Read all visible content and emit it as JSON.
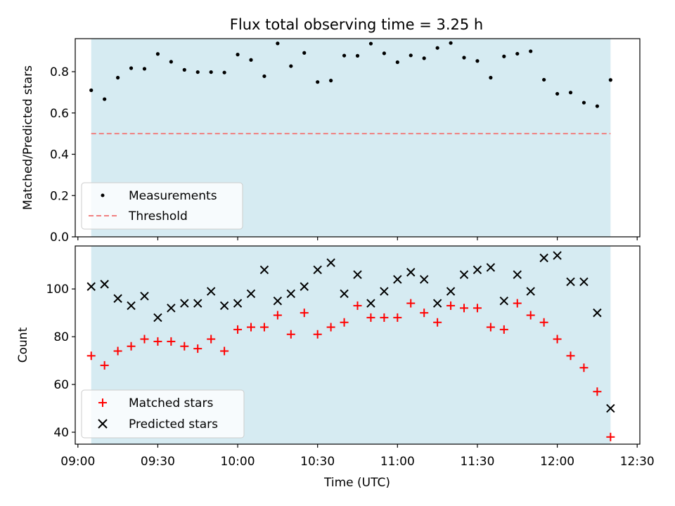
{
  "title": "Flux total observing time = 3.25 h",
  "colors": {
    "shade": "#add8e6",
    "measurements": "#000000",
    "threshold": "#f08080",
    "matched": "#ff0000",
    "predicted": "#000000"
  },
  "chart_data": [
    {
      "type": "scatter",
      "panel": "top",
      "title": "Flux total observing time = 3.25 h",
      "xlabel": "",
      "ylabel": "Matched/Predicted stars",
      "x_axis": "time (UTC, shared with bottom panel)",
      "ylim": [
        0,
        0.96
      ],
      "yticks": [
        "0.0",
        "0.2",
        "0.4",
        "0.6",
        "0.8"
      ],
      "ytick_values": [
        0,
        0.2,
        0.4,
        0.6,
        0.8
      ],
      "observing_window": [
        "09:05",
        "12:20"
      ],
      "legend_position": "lower-left",
      "series": [
        {
          "name": "Measurements",
          "marker": "dot",
          "x": [
            "09:05",
            "09:10",
            "09:15",
            "09:20",
            "09:25",
            "09:30",
            "09:35",
            "09:40",
            "09:45",
            "09:50",
            "09:55",
            "10:00",
            "10:05",
            "10:10",
            "10:15",
            "10:20",
            "10:25",
            "10:30",
            "10:35",
            "10:40",
            "10:45",
            "10:50",
            "10:55",
            "11:00",
            "11:05",
            "11:10",
            "11:15",
            "11:20",
            "11:25",
            "11:30",
            "11:35",
            "11:40",
            "11:45",
            "11:50",
            "11:55",
            "12:00",
            "12:05",
            "12:10",
            "12:15",
            "12:20"
          ],
          "y": [
            0.71,
            0.667,
            0.771,
            0.817,
            0.814,
            0.886,
            0.848,
            0.809,
            0.798,
            0.798,
            0.796,
            0.883,
            0.857,
            0.778,
            0.937,
            0.827,
            0.891,
            0.75,
            0.757,
            0.878,
            0.877,
            0.936,
            0.889,
            0.846,
            0.879,
            0.865,
            0.915,
            0.939,
            0.868,
            0.852,
            0.771,
            0.874,
            0.887,
            0.899,
            0.761,
            0.693,
            0.699,
            0.65,
            0.633,
            0.76
          ]
        },
        {
          "name": "Threshold",
          "style": "dashed",
          "x": [
            "09:05",
            "12:20"
          ],
          "y": [
            0.5,
            0.5
          ]
        }
      ]
    },
    {
      "type": "scatter",
      "panel": "bottom",
      "xlabel": "Time (UTC)",
      "ylabel": "Count",
      "ylim": [
        35,
        118
      ],
      "yticks": [
        "40",
        "60",
        "80",
        "100"
      ],
      "ytick_values": [
        40,
        60,
        80,
        100
      ],
      "xlim": [
        "08:59",
        "12:31"
      ],
      "xticks": [
        "09:00",
        "09:30",
        "10:00",
        "10:30",
        "11:00",
        "11:30",
        "12:00",
        "12:30"
      ],
      "observing_window": [
        "09:05",
        "12:20"
      ],
      "legend_position": "lower-left",
      "series": [
        {
          "name": "Matched stars",
          "marker": "plus",
          "x": [
            "09:05",
            "09:10",
            "09:15",
            "09:20",
            "09:25",
            "09:30",
            "09:35",
            "09:40",
            "09:45",
            "09:50",
            "09:55",
            "10:00",
            "10:05",
            "10:10",
            "10:15",
            "10:20",
            "10:25",
            "10:30",
            "10:35",
            "10:40",
            "10:45",
            "10:50",
            "10:55",
            "11:00",
            "11:05",
            "11:10",
            "11:15",
            "11:20",
            "11:25",
            "11:30",
            "11:35",
            "11:40",
            "11:45",
            "11:50",
            "11:55",
            "12:00",
            "12:05",
            "12:10",
            "12:15",
            "12:20"
          ],
          "y": [
            72,
            68,
            74,
            76,
            79,
            78,
            78,
            76,
            75,
            79,
            74,
            83,
            84,
            84,
            89,
            81,
            90,
            81,
            84,
            86,
            93,
            88,
            88,
            88,
            94,
            90,
            86,
            93,
            92,
            92,
            84,
            83,
            94,
            89,
            86,
            79,
            72,
            67,
            57,
            38
          ]
        },
        {
          "name": "Predicted stars",
          "marker": "x",
          "x": [
            "09:05",
            "09:10",
            "09:15",
            "09:20",
            "09:25",
            "09:30",
            "09:35",
            "09:40",
            "09:45",
            "09:50",
            "09:55",
            "10:00",
            "10:05",
            "10:10",
            "10:15",
            "10:20",
            "10:25",
            "10:30",
            "10:35",
            "10:40",
            "10:45",
            "10:50",
            "10:55",
            "11:00",
            "11:05",
            "11:10",
            "11:15",
            "11:20",
            "11:25",
            "11:30",
            "11:35",
            "11:40",
            "11:45",
            "11:50",
            "11:55",
            "12:00",
            "12:05",
            "12:10",
            "12:15",
            "12:20"
          ],
          "y": [
            101,
            102,
            96,
            93,
            97,
            88,
            92,
            94,
            94,
            99,
            93,
            94,
            98,
            108,
            95,
            98,
            101,
            108,
            111,
            98,
            106,
            94,
            99,
            104,
            107,
            104,
            94,
            99,
            106,
            108,
            109,
            95,
            106,
            99,
            113,
            114,
            103,
            103,
            90,
            50
          ]
        }
      ]
    }
  ]
}
